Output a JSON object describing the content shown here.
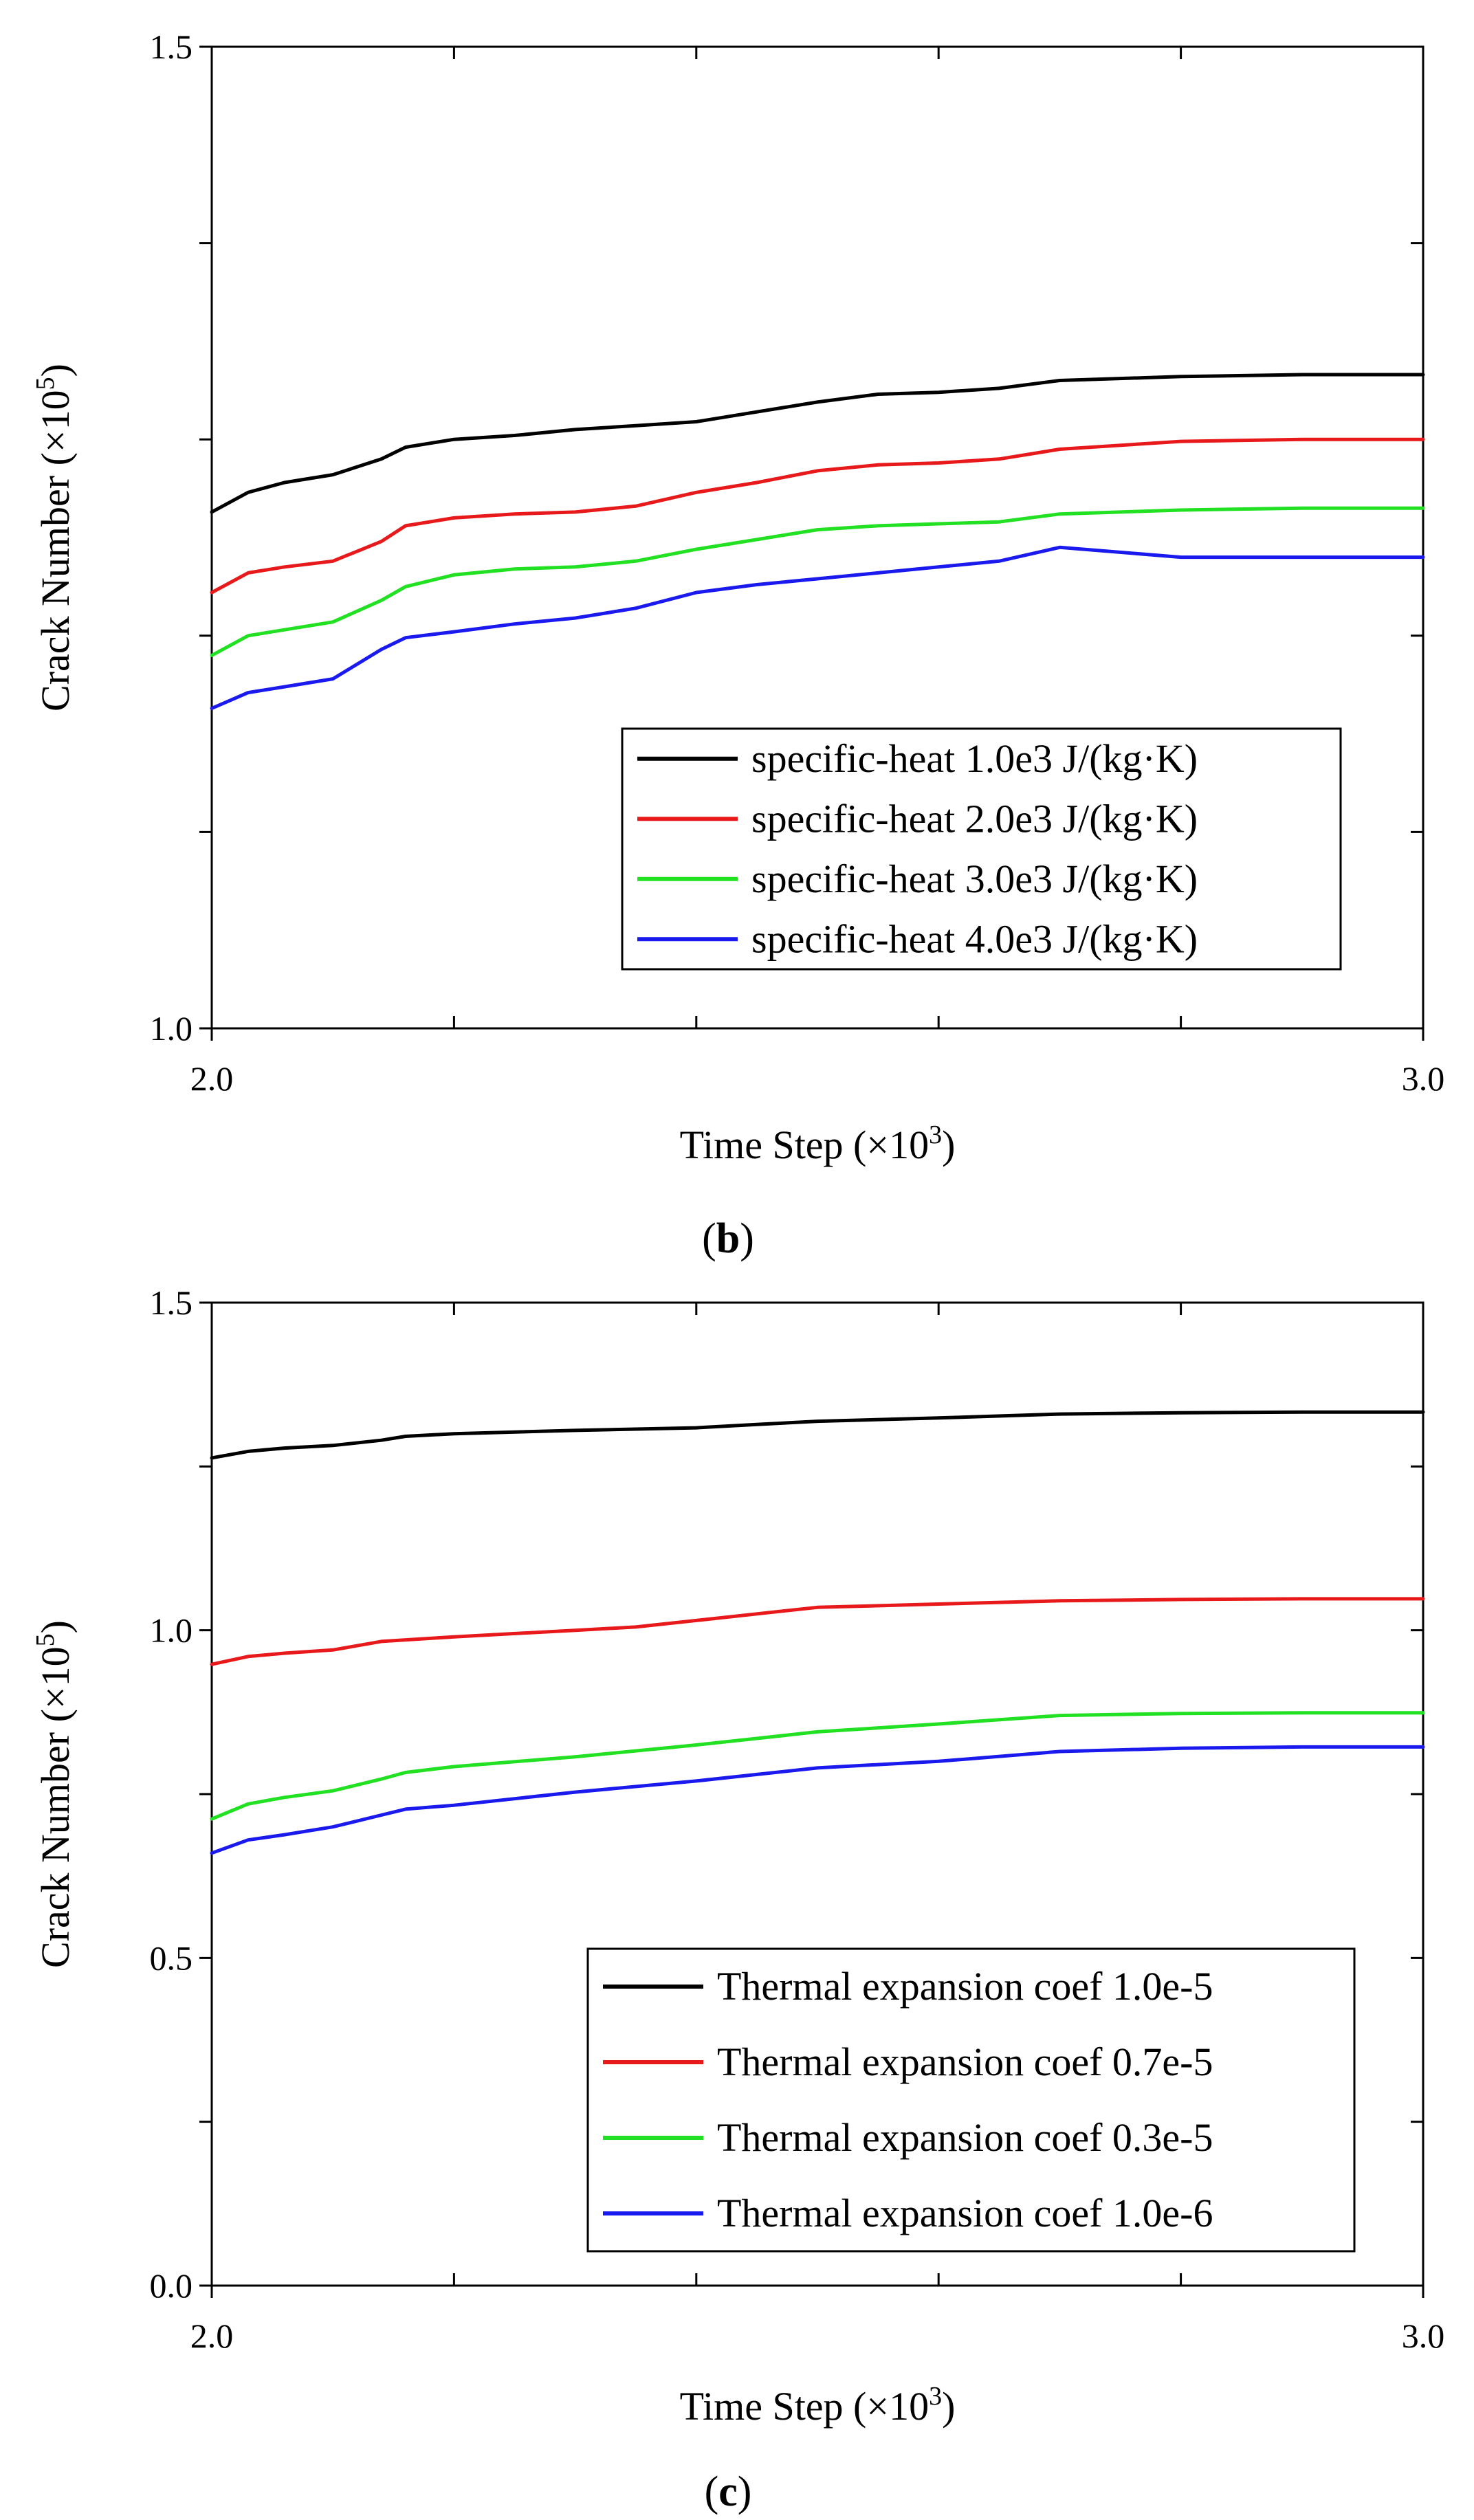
{
  "chart_data": [
    {
      "type": "line",
      "panel_label": "b",
      "xlabel": "Time Step (×10",
      "xlabel_exponent": "3",
      "xlabel_suffix": ")",
      "ylabel": "Crack Number (×10",
      "ylabel_exponent": "5",
      "ylabel_suffix": ")",
      "xlim": [
        2.0,
        3.0
      ],
      "ylim": [
        1.0,
        1.5
      ],
      "x_tick_labels": [
        {
          "value": 2.0,
          "label": "2.0"
        },
        {
          "value": 3.0,
          "label": "3.0"
        }
      ],
      "y_tick_labels": [
        {
          "value": 1.0,
          "label": "1.0"
        },
        {
          "value": 1.5,
          "label": "1.5"
        }
      ],
      "x_minor_ticks": [
        2.2,
        2.4,
        2.6,
        2.8
      ],
      "y_minor_ticks": [
        1.1,
        1.2,
        1.3,
        1.4
      ],
      "grid": false,
      "legend_position": "bottom-right",
      "series": [
        {
          "name": "specific-heat 1.0e3 J/(kg·K)",
          "color": "#000000",
          "x": [
            2.0,
            2.03,
            2.06,
            2.1,
            2.14,
            2.16,
            2.2,
            2.25,
            2.3,
            2.35,
            2.4,
            2.45,
            2.5,
            2.55,
            2.6,
            2.65,
            2.7,
            2.8,
            2.9,
            3.0
          ],
          "y": [
            1.263,
            1.273,
            1.278,
            1.282,
            1.29,
            1.296,
            1.3,
            1.302,
            1.305,
            1.307,
            1.309,
            1.314,
            1.319,
            1.323,
            1.324,
            1.326,
            1.33,
            1.332,
            1.333,
            1.333
          ]
        },
        {
          "name": "specific-heat 2.0e3 J/(kg·K)",
          "color": "#e8191a",
          "x": [
            2.0,
            2.03,
            2.06,
            2.1,
            2.14,
            2.16,
            2.2,
            2.25,
            2.3,
            2.35,
            2.4,
            2.45,
            2.5,
            2.55,
            2.6,
            2.65,
            2.7,
            2.8,
            2.9,
            3.0
          ],
          "y": [
            1.222,
            1.232,
            1.235,
            1.238,
            1.248,
            1.256,
            1.26,
            1.262,
            1.263,
            1.266,
            1.273,
            1.278,
            1.284,
            1.287,
            1.288,
            1.29,
            1.295,
            1.299,
            1.3,
            1.3
          ]
        },
        {
          "name": "specific-heat 3.0e3 J/(kg·K)",
          "color": "#22e022",
          "x": [
            2.0,
            2.03,
            2.06,
            2.1,
            2.14,
            2.16,
            2.2,
            2.25,
            2.3,
            2.35,
            2.4,
            2.45,
            2.5,
            2.55,
            2.6,
            2.65,
            2.7,
            2.8,
            2.9,
            3.0
          ],
          "y": [
            1.19,
            1.2,
            1.203,
            1.207,
            1.218,
            1.225,
            1.231,
            1.234,
            1.235,
            1.238,
            1.244,
            1.249,
            1.254,
            1.256,
            1.257,
            1.258,
            1.262,
            1.264,
            1.265,
            1.265
          ]
        },
        {
          "name": "specific-heat 4.0e3 J/(kg·K)",
          "color": "#1a1aee",
          "x": [
            2.0,
            2.03,
            2.06,
            2.1,
            2.14,
            2.16,
            2.2,
            2.25,
            2.3,
            2.35,
            2.4,
            2.45,
            2.5,
            2.55,
            2.6,
            2.65,
            2.7,
            2.8,
            2.9,
            3.0
          ],
          "y": [
            1.163,
            1.171,
            1.174,
            1.178,
            1.193,
            1.199,
            1.202,
            1.206,
            1.209,
            1.214,
            1.222,
            1.226,
            1.229,
            1.232,
            1.235,
            1.238,
            1.245,
            1.24,
            1.24,
            1.24
          ]
        }
      ]
    },
    {
      "type": "line",
      "panel_label": "c",
      "xlabel": "Time Step (×10",
      "xlabel_exponent": "3",
      "xlabel_suffix": ")",
      "ylabel": "Crack Number (×10",
      "ylabel_exponent": "5",
      "ylabel_suffix": ")",
      "xlim": [
        2.0,
        3.0
      ],
      "ylim": [
        0.0,
        1.5
      ],
      "x_tick_labels": [
        {
          "value": 2.0,
          "label": "2.0"
        },
        {
          "value": 3.0,
          "label": "3.0"
        }
      ],
      "y_tick_labels": [
        {
          "value": 0.0,
          "label": "0.0"
        },
        {
          "value": 0.5,
          "label": "0.5"
        },
        {
          "value": 1.0,
          "label": "1.0"
        },
        {
          "value": 1.5,
          "label": "1.5"
        }
      ],
      "x_minor_ticks": [
        2.2,
        2.4,
        2.6,
        2.8
      ],
      "y_minor_ticks": [
        0.25,
        0.75,
        1.25
      ],
      "grid": false,
      "legend_position": "bottom-right",
      "series": [
        {
          "name": "Thermal expansion coef 1.0e-5",
          "color": "#000000",
          "x": [
            2.0,
            2.03,
            2.06,
            2.1,
            2.14,
            2.16,
            2.2,
            2.3,
            2.4,
            2.45,
            2.5,
            2.6,
            2.7,
            2.8,
            2.9,
            3.0
          ],
          "y": [
            1.263,
            1.273,
            1.278,
            1.282,
            1.29,
            1.296,
            1.3,
            1.305,
            1.309,
            1.314,
            1.319,
            1.324,
            1.33,
            1.332,
            1.333,
            1.333
          ]
        },
        {
          "name": "Thermal expansion coef 0.7e-5",
          "color": "#e8191a",
          "x": [
            2.0,
            2.03,
            2.06,
            2.1,
            2.14,
            2.2,
            2.3,
            2.35,
            2.4,
            2.45,
            2.5,
            2.6,
            2.7,
            2.8,
            2.9,
            3.0
          ],
          "y": [
            0.948,
            0.96,
            0.965,
            0.97,
            0.983,
            0.99,
            1.0,
            1.005,
            1.015,
            1.025,
            1.035,
            1.04,
            1.045,
            1.047,
            1.048,
            1.048
          ]
        },
        {
          "name": "Thermal expansion coef 0.3e-5",
          "color": "#22e022",
          "x": [
            2.0,
            2.03,
            2.06,
            2.1,
            2.14,
            2.16,
            2.2,
            2.3,
            2.4,
            2.45,
            2.5,
            2.6,
            2.7,
            2.8,
            2.9,
            3.0
          ],
          "y": [
            0.712,
            0.735,
            0.745,
            0.755,
            0.773,
            0.783,
            0.792,
            0.807,
            0.825,
            0.835,
            0.845,
            0.857,
            0.87,
            0.873,
            0.874,
            0.874
          ]
        },
        {
          "name": "Thermal expansion coef 1.0e-6",
          "color": "#1a1aee",
          "x": [
            2.0,
            2.03,
            2.06,
            2.1,
            2.14,
            2.16,
            2.2,
            2.3,
            2.4,
            2.45,
            2.5,
            2.6,
            2.7,
            2.8,
            2.9,
            3.0
          ],
          "y": [
            0.66,
            0.68,
            0.688,
            0.7,
            0.718,
            0.727,
            0.733,
            0.753,
            0.77,
            0.78,
            0.79,
            0.8,
            0.815,
            0.82,
            0.822,
            0.822
          ]
        }
      ]
    }
  ]
}
